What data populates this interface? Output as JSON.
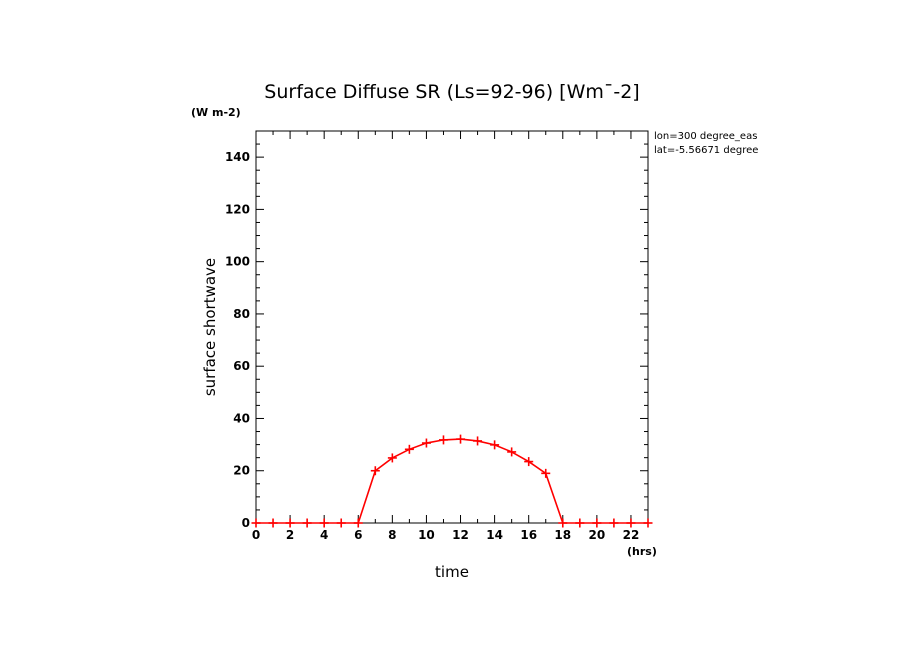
{
  "chart_data": {
    "type": "line",
    "title": "Surface Diffuse SR (Ls=92-96) [Wm¯-2]",
    "y_unit": "(W m-2)",
    "x_unit": "(hrs)",
    "xlabel": "time",
    "ylabel": "surface shortwave",
    "annotations": [
      "lon=300 degree_eas",
      "lat=-5.56671 degree"
    ],
    "xlim": [
      0,
      23
    ],
    "ylim": [
      0,
      150
    ],
    "x_ticks": [
      0,
      2,
      4,
      6,
      8,
      10,
      12,
      14,
      16,
      18,
      20,
      22
    ],
    "y_ticks": [
      0,
      20,
      40,
      60,
      80,
      100,
      120,
      140
    ],
    "grid": false,
    "series": [
      {
        "color": "#ff0000",
        "marker": "plus",
        "x": [
          0,
          1,
          2,
          3,
          4,
          5,
          6,
          7,
          8,
          9,
          10,
          11,
          12,
          13,
          14,
          15,
          16,
          17,
          18,
          19,
          20,
          21,
          22,
          23
        ],
        "values": [
          0,
          0,
          0,
          0,
          0,
          0,
          0,
          20,
          24.9,
          28.2,
          30.6,
          31.8,
          32.1,
          31.4,
          29.9,
          27.2,
          23.5,
          19,
          0,
          0,
          0,
          0,
          0,
          0
        ]
      }
    ]
  }
}
